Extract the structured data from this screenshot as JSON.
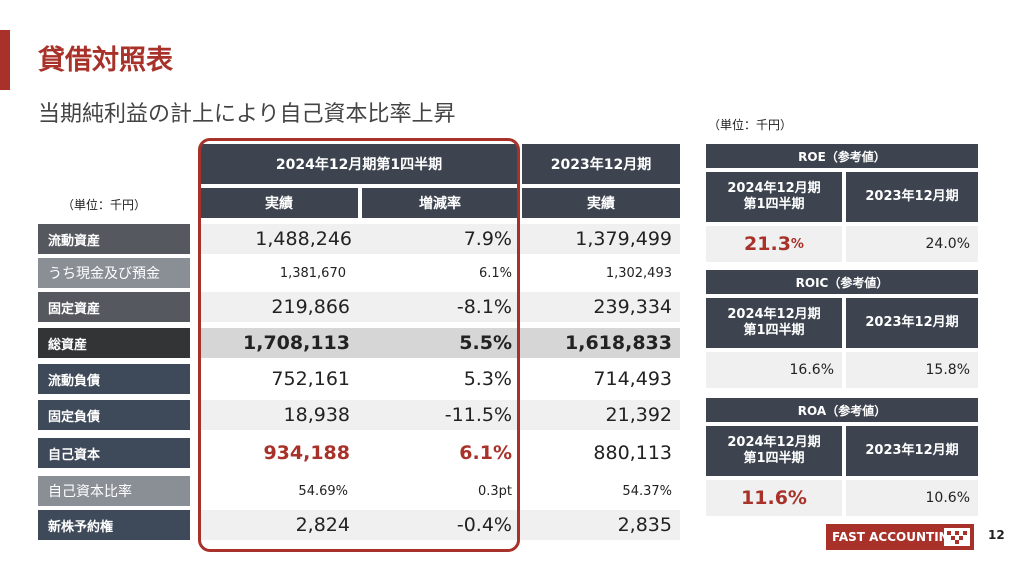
{
  "title": "貸借対照表",
  "subtitle": "当期純利益の計上により自己資本比率上昇",
  "unit_label": "（単位：千円）",
  "unit_label_right": "（単位：千円）",
  "table": {
    "header_current": "2024年12月期第1四半期",
    "header_prior": "2023年12月期",
    "col_actual": "実績",
    "col_change": "増減率",
    "col_prior_actual": "実績",
    "rows": [
      {
        "label": "流動資産",
        "current": "1,488,246",
        "change": "7.9%",
        "prior": "1,379,499"
      },
      {
        "label": "うち現金及び預金",
        "current": "1,381,670",
        "change": "6.1%",
        "prior": "1,302,493"
      },
      {
        "label": "固定資産",
        "current": "219,866",
        "change": "-8.1%",
        "prior": "239,334"
      },
      {
        "label": "総資産",
        "current": "1,708,113",
        "change": "5.5%",
        "prior": "1,618,833"
      },
      {
        "label": "流動負債",
        "current": "752,161",
        "change": "5.3%",
        "prior": "714,493"
      },
      {
        "label": "固定負債",
        "current": "18,938",
        "change": "-11.5%",
        "prior": "21,392"
      },
      {
        "label": "自己資本",
        "current": "934,188",
        "change": "6.1%",
        "prior": "880,113"
      },
      {
        "label": "自己資本比率",
        "current": "54.69%",
        "change": "0.3pt",
        "prior": "54.37%"
      },
      {
        "label": "新株予約権",
        "current": "2,824",
        "change": "-0.4%",
        "prior": "2,835"
      }
    ]
  },
  "metrics": [
    {
      "title": "ROE（参考値）",
      "col_current": "2024年12月期\n第1四半期",
      "col_prior": "2023年12月期",
      "current_value": "21.3",
      "current_unit": "%",
      "prior_value": "24.0%"
    },
    {
      "title": "ROIC（参考値）",
      "col_current": "2024年12月期\n第1四半期",
      "col_prior": "2023年12月期",
      "current_value": "16.6%",
      "prior_value": "15.8%"
    },
    {
      "title": "ROA（参考値）",
      "col_current": "2024年12月期\n第1四半期",
      "col_prior": "2023年12月期",
      "current_value": "11.6%",
      "prior_value": "10.6%"
    }
  ],
  "logo_text": "FAST ACCOUNTING",
  "page_number": "12",
  "colors": {
    "accent": "#a8312a",
    "header": "#3d4450"
  }
}
